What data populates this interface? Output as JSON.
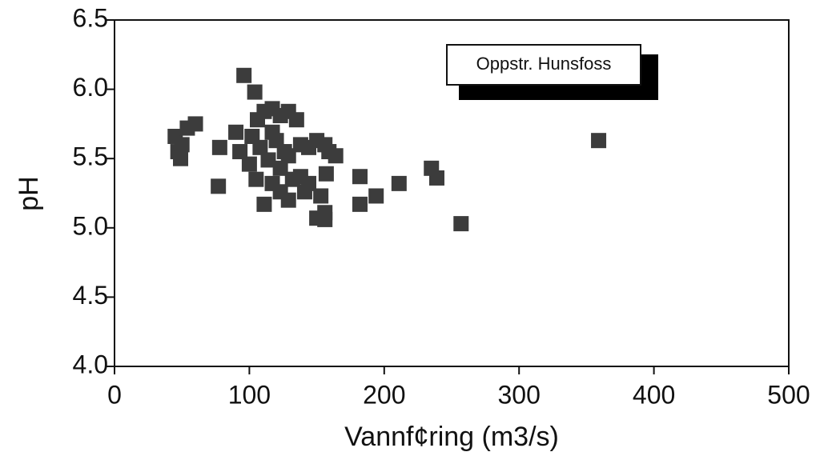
{
  "chart_data": {
    "type": "scatter",
    "xlabel": "Vannf¢ring (m3/s)",
    "ylabel": "pH",
    "xlim": [
      0,
      500
    ],
    "xticks": [
      0,
      100,
      200,
      300,
      400,
      500
    ],
    "ylim": [
      4.0,
      6.5
    ],
    "yticks": [
      {
        "value": 4,
        "label": "4.0"
      },
      4.5,
      {
        "value": 5,
        "label": "5.0"
      },
      5.5,
      {
        "value": 6,
        "label": "6.0"
      },
      6.5
    ],
    "legend": "top-right",
    "series": [
      {
        "name": "Oppstr. Hunsfoss",
        "color": "#3c3c3c",
        "x": [
          45,
          47,
          50,
          54,
          60,
          49,
          78,
          77,
          90,
          96,
          104,
          93,
          102,
          106,
          111,
          117,
          123,
          129,
          135,
          108,
          114,
          120,
          123,
          126,
          111,
          117,
          123,
          129,
          132,
          138,
          141,
          138,
          144,
          150,
          156,
          159,
          164,
          153,
          156,
          150,
          156,
          157,
          182,
          182,
          194,
          211,
          235,
          239,
          257,
          359,
          100,
          105,
          129,
          117,
          144
        ],
        "values": [
          5.66,
          5.55,
          5.6,
          5.72,
          5.75,
          5.5,
          5.58,
          5.3,
          5.69,
          6.1,
          5.98,
          5.55,
          5.66,
          5.78,
          5.84,
          5.86,
          5.81,
          5.84,
          5.78,
          5.58,
          5.49,
          5.63,
          5.43,
          5.55,
          5.17,
          5.32,
          5.26,
          5.2,
          5.35,
          5.37,
          5.26,
          5.6,
          5.58,
          5.63,
          5.6,
          5.55,
          5.52,
          5.23,
          5.11,
          5.07,
          5.06,
          5.39,
          5.37,
          5.17,
          5.23,
          5.32,
          5.43,
          5.36,
          5.03,
          5.63,
          5.46,
          5.35,
          5.52,
          5.69,
          5.32
        ]
      }
    ]
  }
}
